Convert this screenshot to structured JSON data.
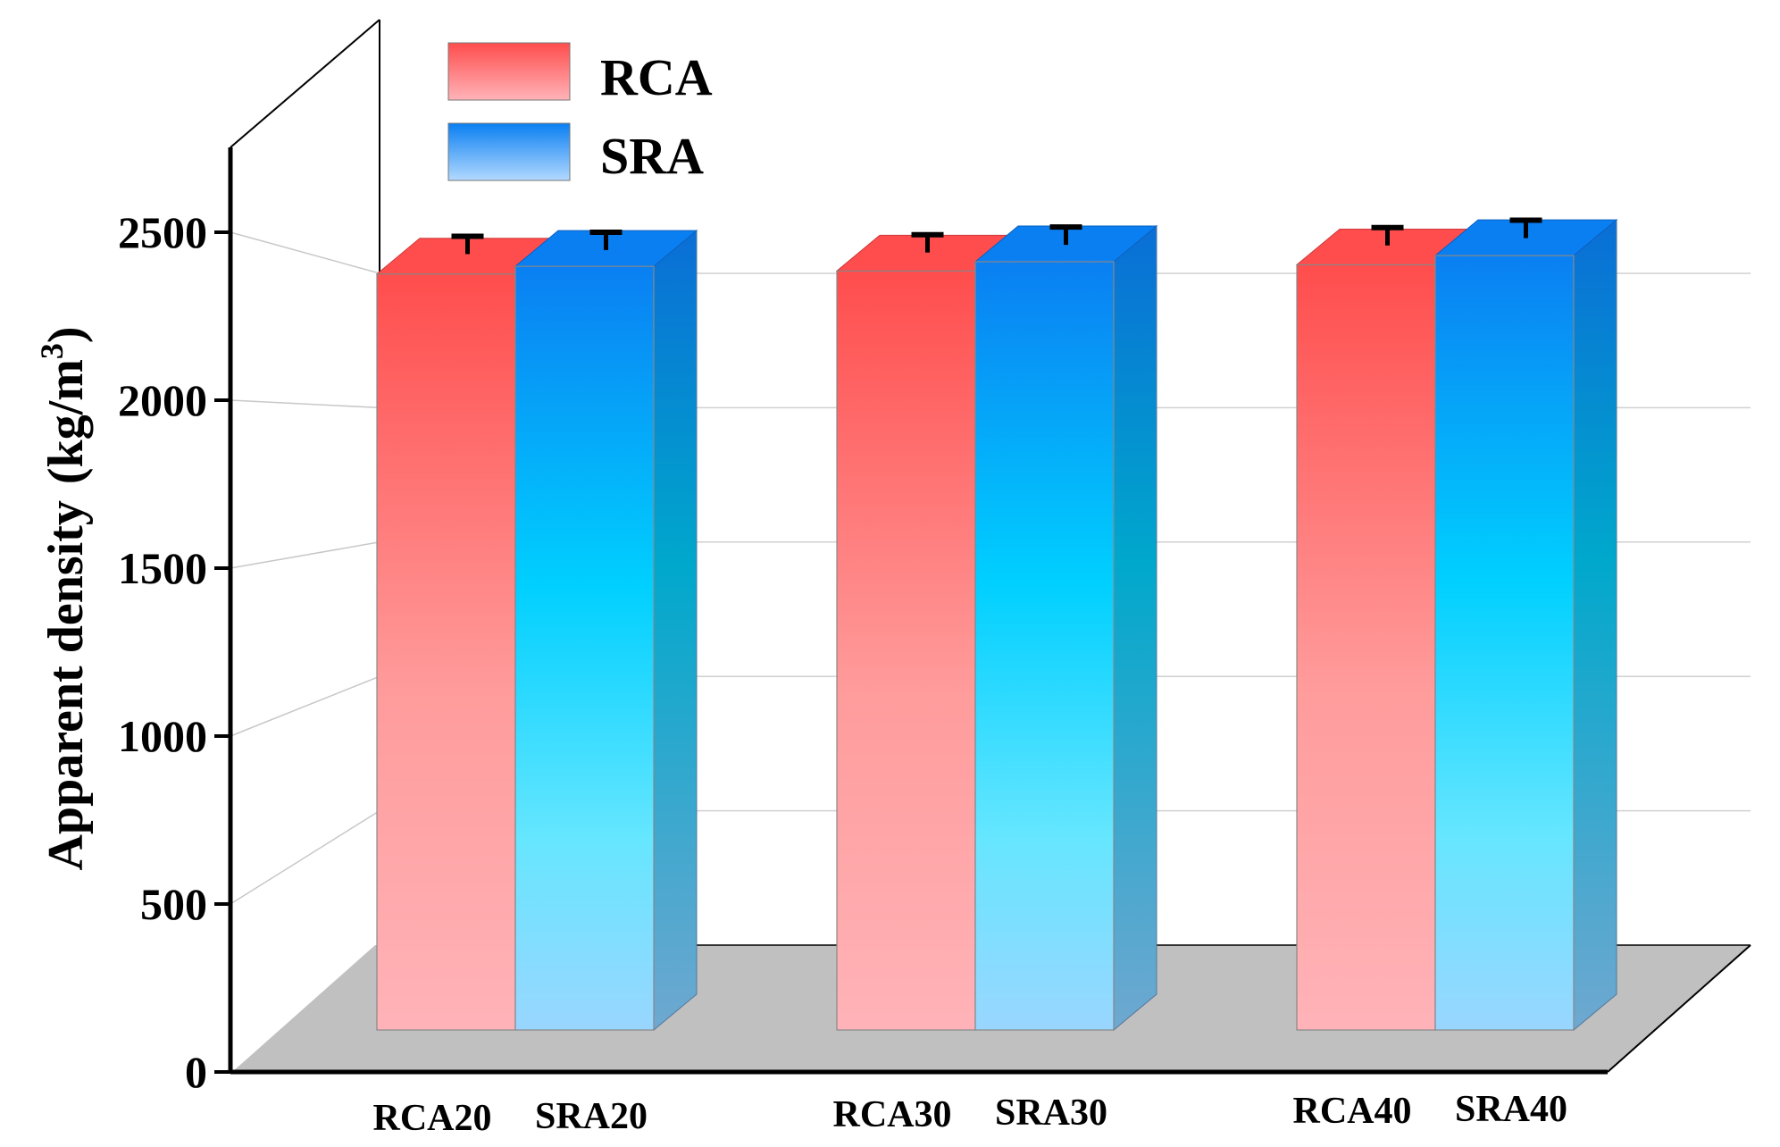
{
  "chart_data": {
    "type": "bar",
    "title": "",
    "xlabel": "",
    "ylabel": "Apparent density",
    "ylabel_unit": "(kg/m",
    "ylabel_unit_sup": "3",
    "ylabel_unit_close": ")",
    "ylim": [
      0,
      2800
    ],
    "yticks": [
      "0",
      "500",
      "1000",
      "1500",
      "2000",
      "2500"
    ],
    "ytick_values": [
      0,
      500,
      1000,
      1500,
      2000,
      2500
    ],
    "categories": [
      {
        "rca_label": "RCA20",
        "sra_label": "SRA20"
      },
      {
        "rca_label": "RCA30",
        "sra_label": "SRA30"
      },
      {
        "rca_label": "RCA40",
        "sra_label": "SRA40"
      }
    ],
    "series": [
      {
        "name": "RCA",
        "values": [
          2460,
          2470,
          2490
        ],
        "errors": [
          30,
          25,
          28
        ],
        "color_top": "#ff4d4d",
        "color_bottom": "#ffb3b3"
      },
      {
        "name": "SRA",
        "values": [
          2485,
          2500,
          2520
        ],
        "errors": [
          18,
          20,
          22
        ],
        "color_top": "#0077ee",
        "color_bottom": "#99ddff"
      }
    ],
    "legend_position": "top-left"
  }
}
